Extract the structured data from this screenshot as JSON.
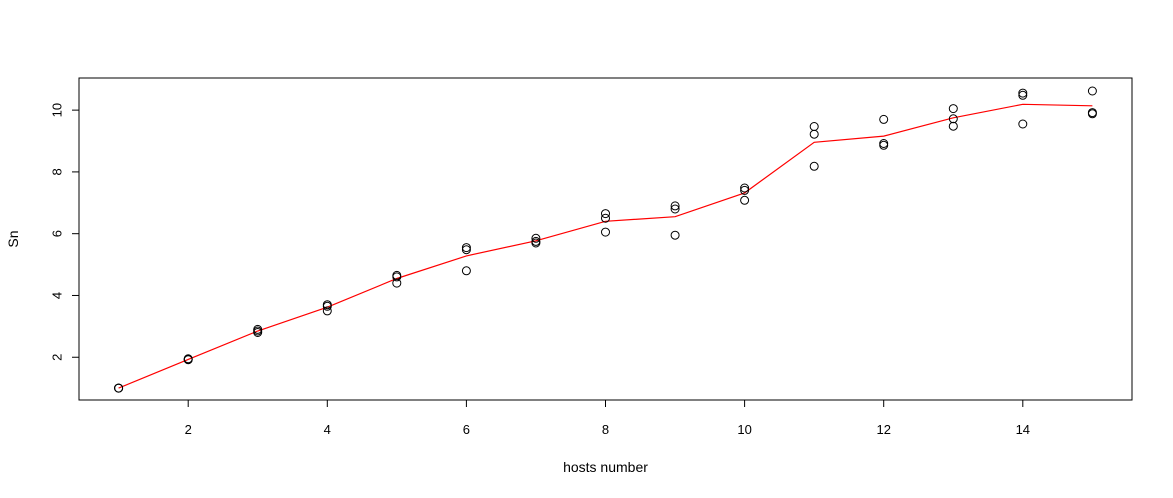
{
  "chart_data": {
    "type": "scatter",
    "xlabel": "hosts number",
    "ylabel": "Sn",
    "xlim": [
      0.43,
      15.57
    ],
    "ylim": [
      0.616,
      11.04
    ],
    "x_ticks": [
      2,
      4,
      6,
      8,
      10,
      12,
      14
    ],
    "y_ticks": [
      2,
      4,
      6,
      8,
      10
    ],
    "grid": false,
    "legend": "none",
    "points": {
      "x": [
        1,
        1,
        1,
        2,
        2,
        2,
        3,
        3,
        3,
        4,
        4,
        4,
        5,
        5,
        5,
        6,
        6,
        6,
        7,
        7,
        7,
        8,
        8,
        8,
        9,
        9,
        9,
        10,
        10,
        10,
        11,
        11,
        11,
        12,
        12,
        12,
        13,
        13,
        13,
        14,
        14,
        14,
        15,
        15,
        15
      ],
      "y": [
        1.0,
        1.0,
        1.0,
        1.95,
        1.93,
        1.92,
        2.9,
        2.85,
        2.8,
        3.7,
        3.65,
        3.5,
        4.65,
        4.6,
        4.4,
        5.55,
        5.48,
        4.8,
        5.85,
        5.75,
        5.7,
        6.65,
        6.5,
        6.05,
        6.9,
        6.8,
        5.95,
        7.48,
        7.4,
        7.08,
        9.47,
        9.22,
        8.18,
        9.7,
        8.92,
        8.86,
        10.05,
        9.72,
        9.48,
        10.55,
        10.48,
        9.55,
        10.62,
        9.92,
        9.88
      ],
      "color": "#000000"
    },
    "mean_line": {
      "x": [
        1,
        2,
        3,
        4,
        5,
        6,
        7,
        8,
        9,
        10,
        11,
        12,
        13,
        14,
        15
      ],
      "y": [
        1.0,
        1.93,
        2.85,
        3.62,
        4.55,
        5.28,
        5.77,
        6.4,
        6.55,
        7.32,
        8.96,
        9.16,
        9.75,
        10.19,
        10.14
      ],
      "color": "#ff0000"
    }
  }
}
